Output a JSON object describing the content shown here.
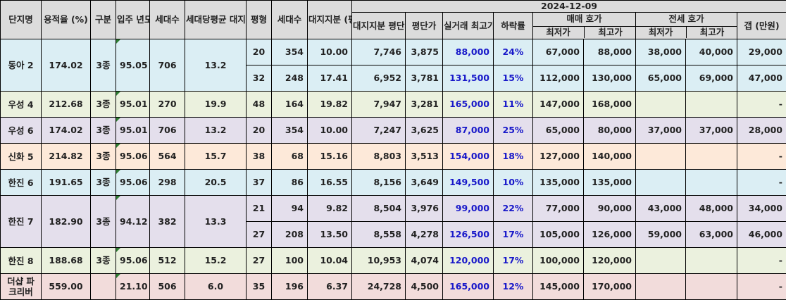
{
  "header": {
    "name": "단지명",
    "far": "용적율 (%)",
    "zone": "구분",
    "movein": "입주 년도",
    "households": "세대수",
    "avg_land": "세대당평균 대지지분(평)",
    "pyeong": "평형",
    "unit_households": "세대수",
    "land_share": "대지지분 (평)",
    "date": "2024-12-09",
    "land_pp": "대지지분 평단가",
    "pp": "평단가",
    "real_max": "실거래 최고가",
    "drop": "하락률",
    "sale": "매매 호가",
    "jeonse": "전세 호가",
    "min": "최저가",
    "max": "최고가",
    "gap": "갭 (만원)"
  },
  "complexes": [
    {
      "name": "동아 2",
      "far": "174.02",
      "zone": "3종",
      "movein": "95.05",
      "households": "706",
      "avg_land": "13.2",
      "bg": "#dbeef4",
      "units": [
        {
          "pyeong": "20",
          "households": "354",
          "land": "10.00",
          "land_pp": "7,746",
          "pp": "3,875",
          "real_max": "88,000",
          "drop": "24%",
          "sale_min": "67,000",
          "sale_max": "88,000",
          "j_min": "38,000",
          "j_max": "40,000",
          "gap": "29,000"
        },
        {
          "pyeong": "32",
          "households": "248",
          "land": "17.41",
          "land_pp": "6,952",
          "pp": "3,781",
          "real_max": "131,500",
          "drop": "15%",
          "sale_min": "112,000",
          "sale_max": "130,000",
          "j_min": "65,000",
          "j_max": "69,000",
          "gap": "47,000"
        }
      ]
    },
    {
      "name": "우성 4",
      "far": "212.68",
      "zone": "3종",
      "movein": "95.01",
      "households": "270",
      "avg_land": "19.9",
      "bg": "#ebf1de",
      "units": [
        {
          "pyeong": "48",
          "households": "164",
          "land": "19.82",
          "land_pp": "7,947",
          "pp": "3,281",
          "real_max": "165,000",
          "drop": "11%",
          "sale_min": "147,000",
          "sale_max": "168,000",
          "j_min": "",
          "j_max": "",
          "gap": "-"
        }
      ]
    },
    {
      "name": "우성 6",
      "far": "174.02",
      "zone": "3종",
      "movein": "95.01",
      "households": "706",
      "avg_land": "13.2",
      "bg": "#e4dfec",
      "units": [
        {
          "pyeong": "20",
          "households": "354",
          "land": "10.00",
          "land_pp": "7,247",
          "pp": "3,625",
          "real_max": "87,000",
          "drop": "25%",
          "sale_min": "65,000",
          "sale_max": "80,000",
          "j_min": "37,000",
          "j_max": "37,000",
          "gap": "28,000"
        }
      ]
    },
    {
      "name": "신화 5",
      "far": "214.82",
      "zone": "3종",
      "movein": "95.06",
      "households": "564",
      "avg_land": "15.7",
      "bg": "#fde9d9",
      "units": [
        {
          "pyeong": "38",
          "households": "68",
          "land": "15.16",
          "land_pp": "8,803",
          "pp": "3,513",
          "real_max": "154,000",
          "drop": "18%",
          "sale_min": "127,000",
          "sale_max": "140,000",
          "j_min": "",
          "j_max": "",
          "gap": "-"
        }
      ]
    },
    {
      "name": "한진 6",
      "far": "191.65",
      "zone": "3종",
      "movein": "95.06",
      "households": "298",
      "avg_land": "20.5",
      "bg": "#dbeef4",
      "units": [
        {
          "pyeong": "37",
          "households": "86",
          "land": "16.55",
          "land_pp": "8,156",
          "pp": "3,649",
          "real_max": "149,500",
          "drop": "10%",
          "sale_min": "135,000",
          "sale_max": "135,000",
          "j_min": "",
          "j_max": "",
          "gap": "-"
        }
      ]
    },
    {
      "name": "한진 7",
      "far": "182.90",
      "zone": "3종",
      "movein": "94.12",
      "households": "382",
      "avg_land": "13.3",
      "bg": "#e4dfec",
      "units": [
        {
          "pyeong": "21",
          "households": "94",
          "land": "9.82",
          "land_pp": "8,504",
          "pp": "3,976",
          "real_max": "99,000",
          "drop": "22%",
          "sale_min": "77,000",
          "sale_max": "90,000",
          "j_min": "43,000",
          "j_max": "48,000",
          "gap": "34,000"
        },
        {
          "pyeong": "27",
          "households": "208",
          "land": "13.50",
          "land_pp": "8,558",
          "pp": "4,278",
          "real_max": "126,500",
          "drop": "17%",
          "sale_min": "105,000",
          "sale_max": "126,000",
          "j_min": "59,000",
          "j_max": "63,000",
          "gap": "46,000"
        }
      ]
    },
    {
      "name": "한진 8",
      "far": "188.68",
      "zone": "3종",
      "movein": "95.06",
      "households": "512",
      "avg_land": "15.2",
      "bg": "#ebf1de",
      "units": [
        {
          "pyeong": "27",
          "households": "100",
          "land": "10.04",
          "land_pp": "10,953",
          "pp": "4,074",
          "real_max": "120,000",
          "drop": "17%",
          "sale_min": "100,000",
          "sale_max": "120,000",
          "j_min": "",
          "j_max": "",
          "gap": "-"
        }
      ]
    },
    {
      "name": "더샵 파크리버",
      "far": "559.00",
      "zone": "",
      "movein": "21.10",
      "households": "506",
      "avg_land": "6.0",
      "bg": "#f2dcdb",
      "units": [
        {
          "pyeong": "35",
          "households": "196",
          "land": "6.37",
          "land_pp": "24,728",
          "pp": "4,500",
          "real_max": "165,000",
          "drop": "12%",
          "sale_min": "145,000",
          "sale_max": "170,000",
          "j_min": "",
          "j_max": "",
          "gap": "-"
        }
      ]
    }
  ]
}
